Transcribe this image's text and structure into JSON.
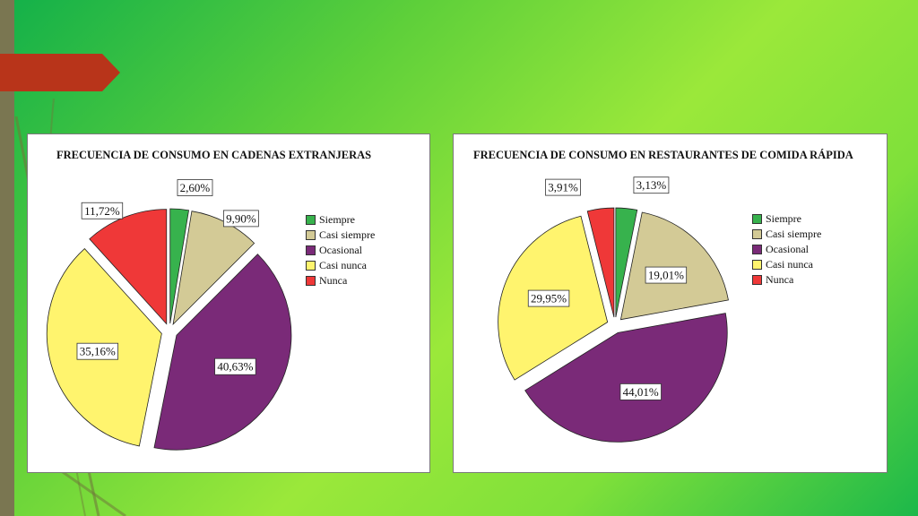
{
  "colors": {
    "siempre": "#37b24d",
    "casi_siempre": "#d3ca96",
    "ocasional": "#7a2a78",
    "casi_nunca": "#fff46e",
    "nunca": "#ef3838",
    "slide_green": "#12b04a",
    "ribbon": "#b8341a"
  },
  "chart_data": [
    {
      "type": "pie",
      "title": "FRECUENCIA DE CONSUMO EN CADENAS EXTRANJERAS",
      "legend_position": "right",
      "slices": [
        {
          "label": "Siempre",
          "value": 2.6,
          "display": "2,60%",
          "color_key": "siempre"
        },
        {
          "label": "Casi siempre",
          "value": 9.9,
          "display": "9,90%",
          "color_key": "casi_siempre"
        },
        {
          "label": "Ocasional",
          "value": 40.63,
          "display": "40,63%",
          "color_key": "ocasional"
        },
        {
          "label": "Casi nunca",
          "value": 35.16,
          "display": "35,16%",
          "color_key": "casi_nunca"
        },
        {
          "label": "Nunca",
          "value": 11.72,
          "display": "11,72%",
          "color_key": "nunca"
        }
      ]
    },
    {
      "type": "pie",
      "title": "FRECUENCIA DE CONSUMO EN RESTAURANTES DE COMIDA RÁPIDA",
      "legend_position": "right",
      "slices": [
        {
          "label": "Siempre",
          "value": 3.13,
          "display": "3,13%",
          "color_key": "siempre"
        },
        {
          "label": "Casi siempre",
          "value": 19.01,
          "display": "19,01%",
          "color_key": "casi_siempre"
        },
        {
          "label": "Ocasional",
          "value": 44.01,
          "display": "44,01%",
          "color_key": "ocasional"
        },
        {
          "label": "Casi nunca",
          "value": 29.95,
          "display": "29,95%",
          "color_key": "casi_nunca"
        },
        {
          "label": "Nunca",
          "value": 3.91,
          "display": "3,91%",
          "color_key": "nunca"
        }
      ]
    }
  ]
}
